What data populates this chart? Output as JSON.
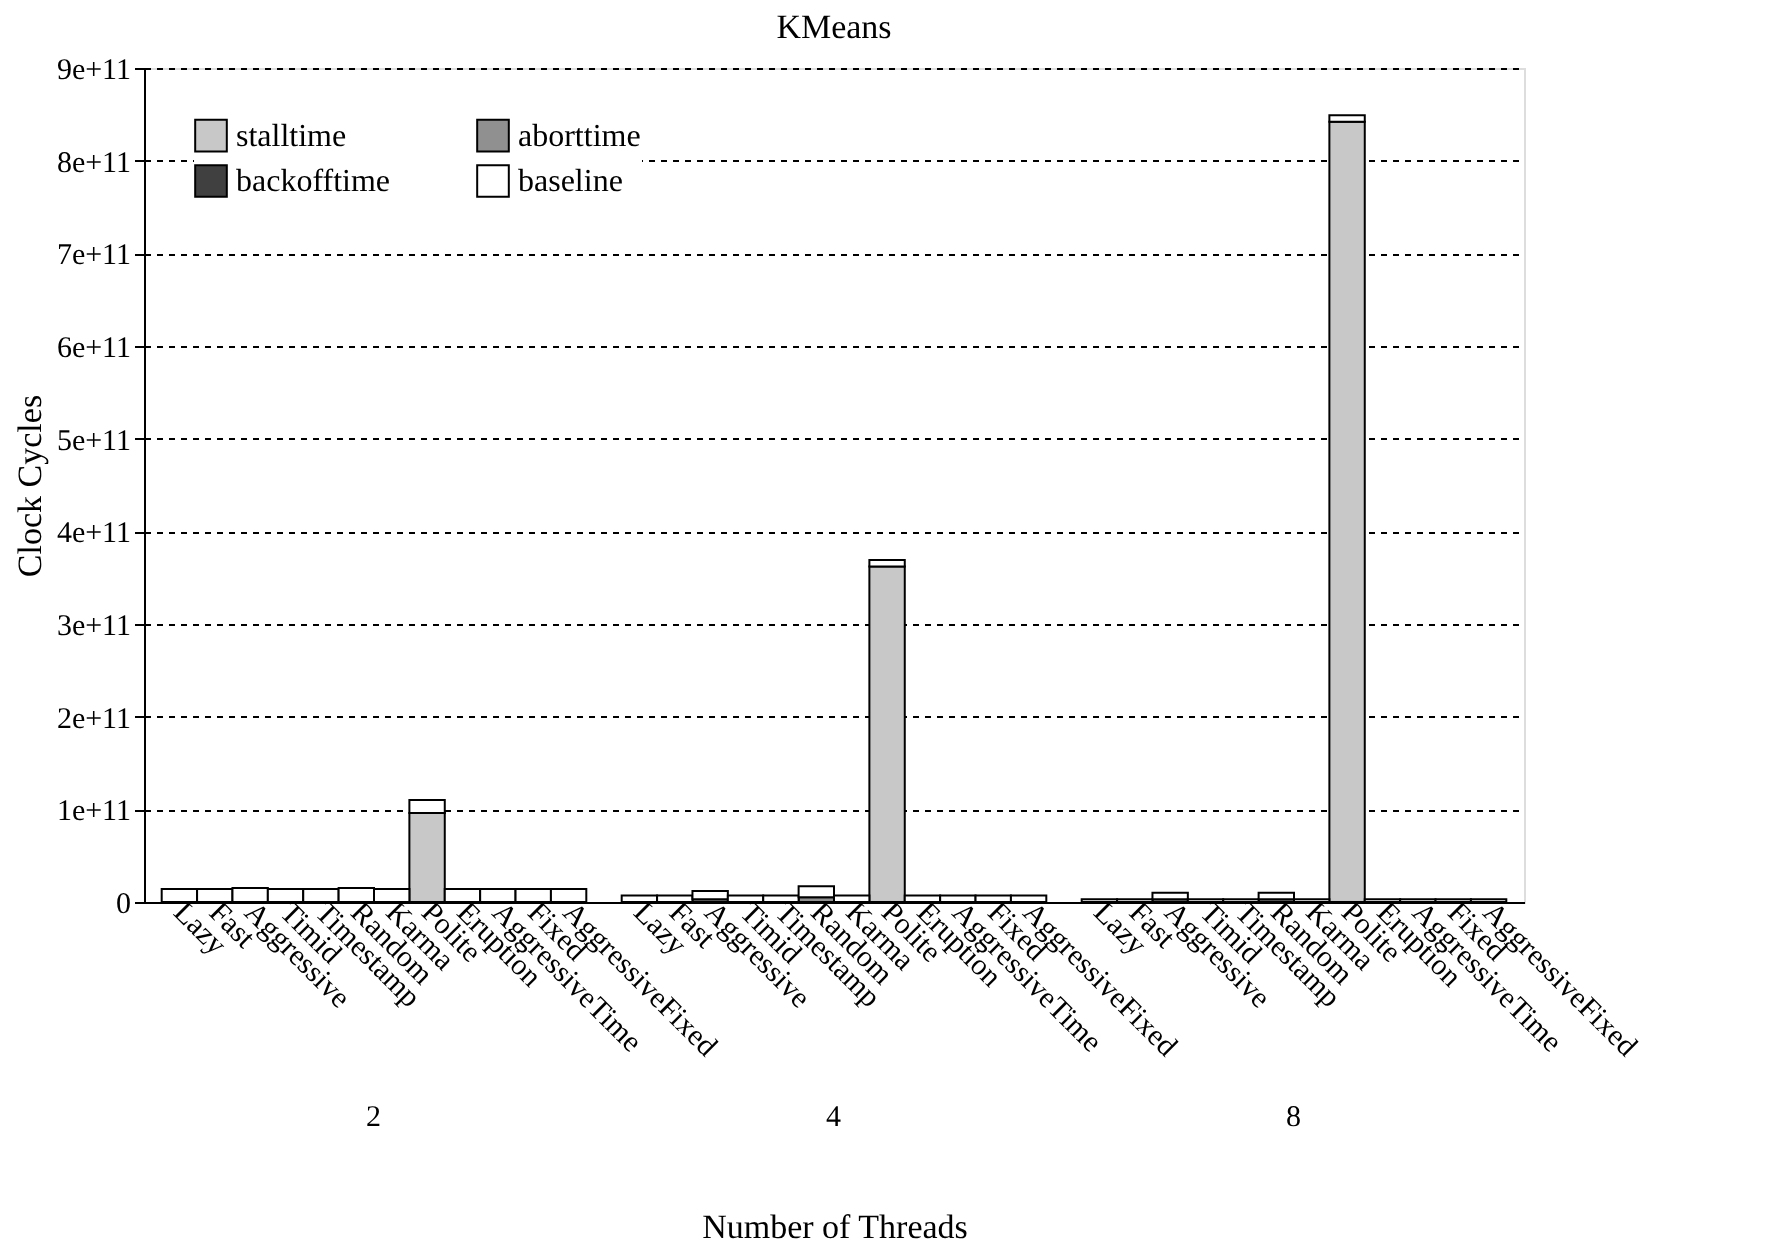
{
  "chart_data": {
    "type": "bar",
    "stacked": true,
    "title": "KMeans",
    "xlabel": "Number of Threads",
    "ylabel": "Clock Cycles",
    "categories": [
      "Lazy",
      "Fast",
      "Aggressive",
      "Timid",
      "Timestamp",
      "Random",
      "Karma",
      "Polite",
      "Eruption",
      "AggressiveTime",
      "Fixed",
      "AggressiveFixed",
      null,
      "Lazy",
      "Fast",
      "Aggressive",
      "Timid",
      "Timestamp",
      "Random",
      "Karma",
      "Polite",
      "Eruption",
      "AggressiveTime",
      "Fixed",
      "AggressiveFixed",
      null,
      "Lazy",
      "Fast",
      "Aggressive",
      "Timid",
      "Timestamp",
      "Random",
      "Karma",
      "Polite",
      "Eruption",
      "AggressiveTime",
      "Fixed",
      "AggressiveFixed"
    ],
    "series": [
      {
        "name": "stalltime",
        "color": "#c8c8c8",
        "values": [
          null,
          null,
          null,
          null,
          null,
          null,
          null,
          96000000000.0,
          null,
          null,
          null,
          null,
          null,
          null,
          null,
          null,
          null,
          null,
          null,
          null,
          362000000000.0,
          null,
          null,
          null,
          null,
          null,
          null,
          null,
          null,
          null,
          null,
          null,
          null,
          842000000000.0,
          null,
          null,
          null,
          null
        ]
      },
      {
        "name": "aborttime",
        "color": "#909090",
        "values": [
          null,
          null,
          null,
          null,
          null,
          null,
          null,
          null,
          null,
          null,
          null,
          null,
          null,
          null,
          null,
          3000000000.0,
          null,
          null,
          5000000000.0,
          null,
          null,
          null,
          null,
          null,
          null,
          null,
          null,
          null,
          3000000000.0,
          null,
          null,
          3000000000.0,
          null,
          null,
          null,
          null,
          null,
          null
        ]
      },
      {
        "name": "backofftime",
        "color": "#404040",
        "values": [
          null,
          null,
          null,
          null,
          null,
          null,
          null,
          null,
          null,
          null,
          null,
          null,
          null,
          null,
          null,
          null,
          null,
          null,
          null,
          null,
          null,
          null,
          null,
          null,
          null,
          null,
          null,
          null,
          null,
          null,
          null,
          null,
          null,
          null,
          null,
          null,
          null,
          null
        ]
      },
      {
        "name": "baseline",
        "color": "#ffffff",
        "values": [
          14000000000.0,
          14000000000.0,
          15000000000.0,
          14000000000.0,
          14000000000.0,
          15000000000.0,
          14000000000.0,
          14000000000.0,
          14000000000.0,
          14000000000.0,
          14000000000.0,
          14000000000.0,
          null,
          7000000000.0,
          7000000000.0,
          9000000000.0,
          7000000000.0,
          7000000000.0,
          12000000000.0,
          7000000000.0,
          7000000000.0,
          7000000000.0,
          7000000000.0,
          7000000000.0,
          7000000000.0,
          null,
          3000000000.0,
          3000000000.0,
          7000000000.0,
          3000000000.0,
          3000000000.0,
          7000000000.0,
          3000000000.0,
          7000000000.0,
          3000000000.0,
          3000000000.0,
          3000000000.0,
          3000000000.0
        ]
      }
    ],
    "ylim": [
      0,
      900000000000.0
    ],
    "yticks": [
      0,
      {
        "value": 100000000000.0,
        "label": "1e+11"
      },
      {
        "value": 200000000000.0,
        "label": "2e+11"
      },
      {
        "value": 300000000000.0,
        "label": "3e+11"
      },
      {
        "value": 400000000000.0,
        "label": "4e+11"
      },
      {
        "value": 500000000000.0,
        "label": "5e+11"
      },
      {
        "value": 600000000000.0,
        "label": "6e+11"
      },
      {
        "value": 700000000000.0,
        "label": "7e+11"
      },
      {
        "value": 800000000000.0,
        "label": "8e+11"
      },
      {
        "value": 900000000000.0,
        "label": "9e+11"
      }
    ],
    "grid": "y",
    "legend": "top left",
    "annotations": [
      "2",
      "4",
      "8"
    ]
  }
}
